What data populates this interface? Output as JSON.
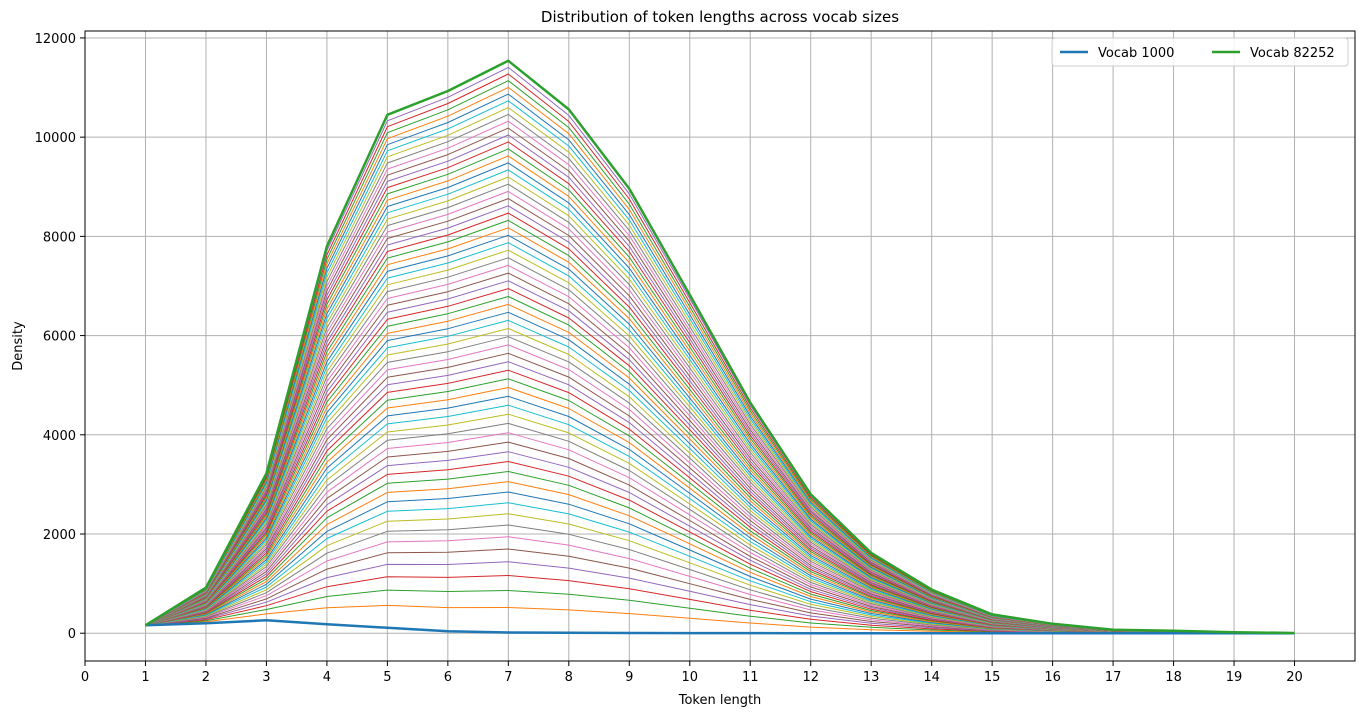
{
  "chart_data": {
    "type": "line",
    "title": "Distribution of token lengths across vocab sizes",
    "xlabel": "Token length",
    "ylabel": "Density",
    "xlim": [
      0,
      21
    ],
    "ylim": [
      -560,
      12140
    ],
    "xticks": [
      0,
      1,
      2,
      3,
      4,
      5,
      6,
      7,
      8,
      9,
      10,
      11,
      12,
      13,
      14,
      15,
      16,
      17,
      18,
      19,
      20
    ],
    "yticks": [
      0,
      2000,
      4000,
      6000,
      8000,
      10000,
      12000
    ],
    "grid": true,
    "legend_position": "top-right",
    "x": [
      1,
      2,
      3,
      4,
      5,
      6,
      7,
      8,
      9,
      10,
      11,
      12,
      13,
      14,
      15,
      16,
      17,
      18,
      19,
      20
    ],
    "first_series": {
      "name": "Vocab 1000",
      "color": "#1f77b4",
      "values": [
        160,
        200,
        260,
        180,
        110,
        40,
        15,
        10,
        5,
        3,
        2,
        1,
        0,
        0,
        0,
        0,
        0,
        0,
        0,
        0
      ]
    },
    "last_series": {
      "name": "Vocab 82252",
      "color": "#2ca02c",
      "values": [
        160,
        920,
        3220,
        7800,
        10450,
        10930,
        11540,
        10560,
        8960,
        6820,
        4650,
        2800,
        1620,
        880,
        380,
        190,
        70,
        50,
        20,
        5
      ]
    },
    "intermediate_series_count": 64,
    "cycle_colors": [
      "#1f77b4",
      "#ff7f0e",
      "#2ca02c",
      "#d62728",
      "#9467bd",
      "#8c564b",
      "#e377c2",
      "#7f7f7f",
      "#bcbd22",
      "#17becf"
    ]
  }
}
